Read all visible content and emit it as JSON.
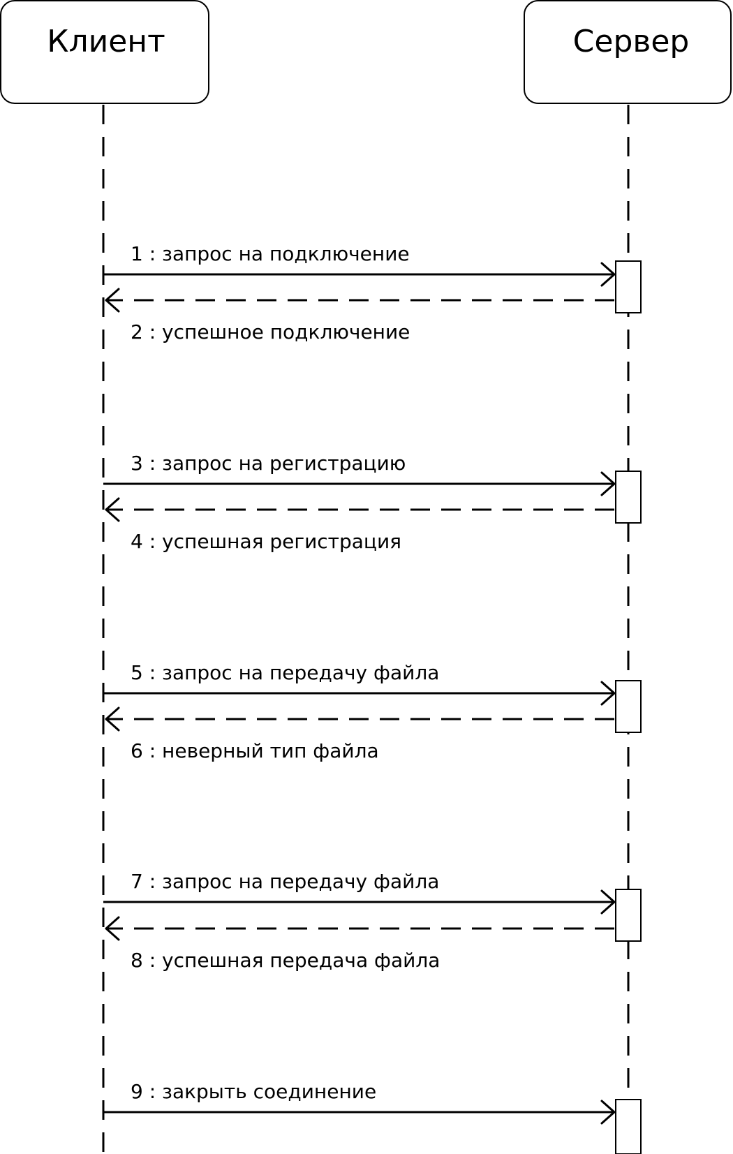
{
  "participants": [
    {
      "id": "client",
      "title": "Клиент"
    },
    {
      "id": "server",
      "title": "Сервер"
    }
  ],
  "messages": [
    {
      "label": "1 : запрос на подключение",
      "from": "client",
      "to": "server",
      "kind": "call"
    },
    {
      "label": "2 : успешное подключение",
      "from": "server",
      "to": "client",
      "kind": "return"
    },
    {
      "label": "3 : запрос на регистрацию",
      "from": "client",
      "to": "server",
      "kind": "call"
    },
    {
      "label": "4 : успешная регистрация",
      "from": "server",
      "to": "client",
      "kind": "return"
    },
    {
      "label": "5 : запрос на передачу файла",
      "from": "client",
      "to": "server",
      "kind": "call"
    },
    {
      "label": "6 : неверный тип файла",
      "from": "server",
      "to": "client",
      "kind": "return"
    },
    {
      "label": "7 : запрос на передачу файла",
      "from": "client",
      "to": "server",
      "kind": "call"
    },
    {
      "label": "8 : успешная передача файла",
      "from": "server",
      "to": "client",
      "kind": "return"
    },
    {
      "label": "9 : закрыть соединение",
      "from": "client",
      "to": "server",
      "kind": "call"
    }
  ]
}
